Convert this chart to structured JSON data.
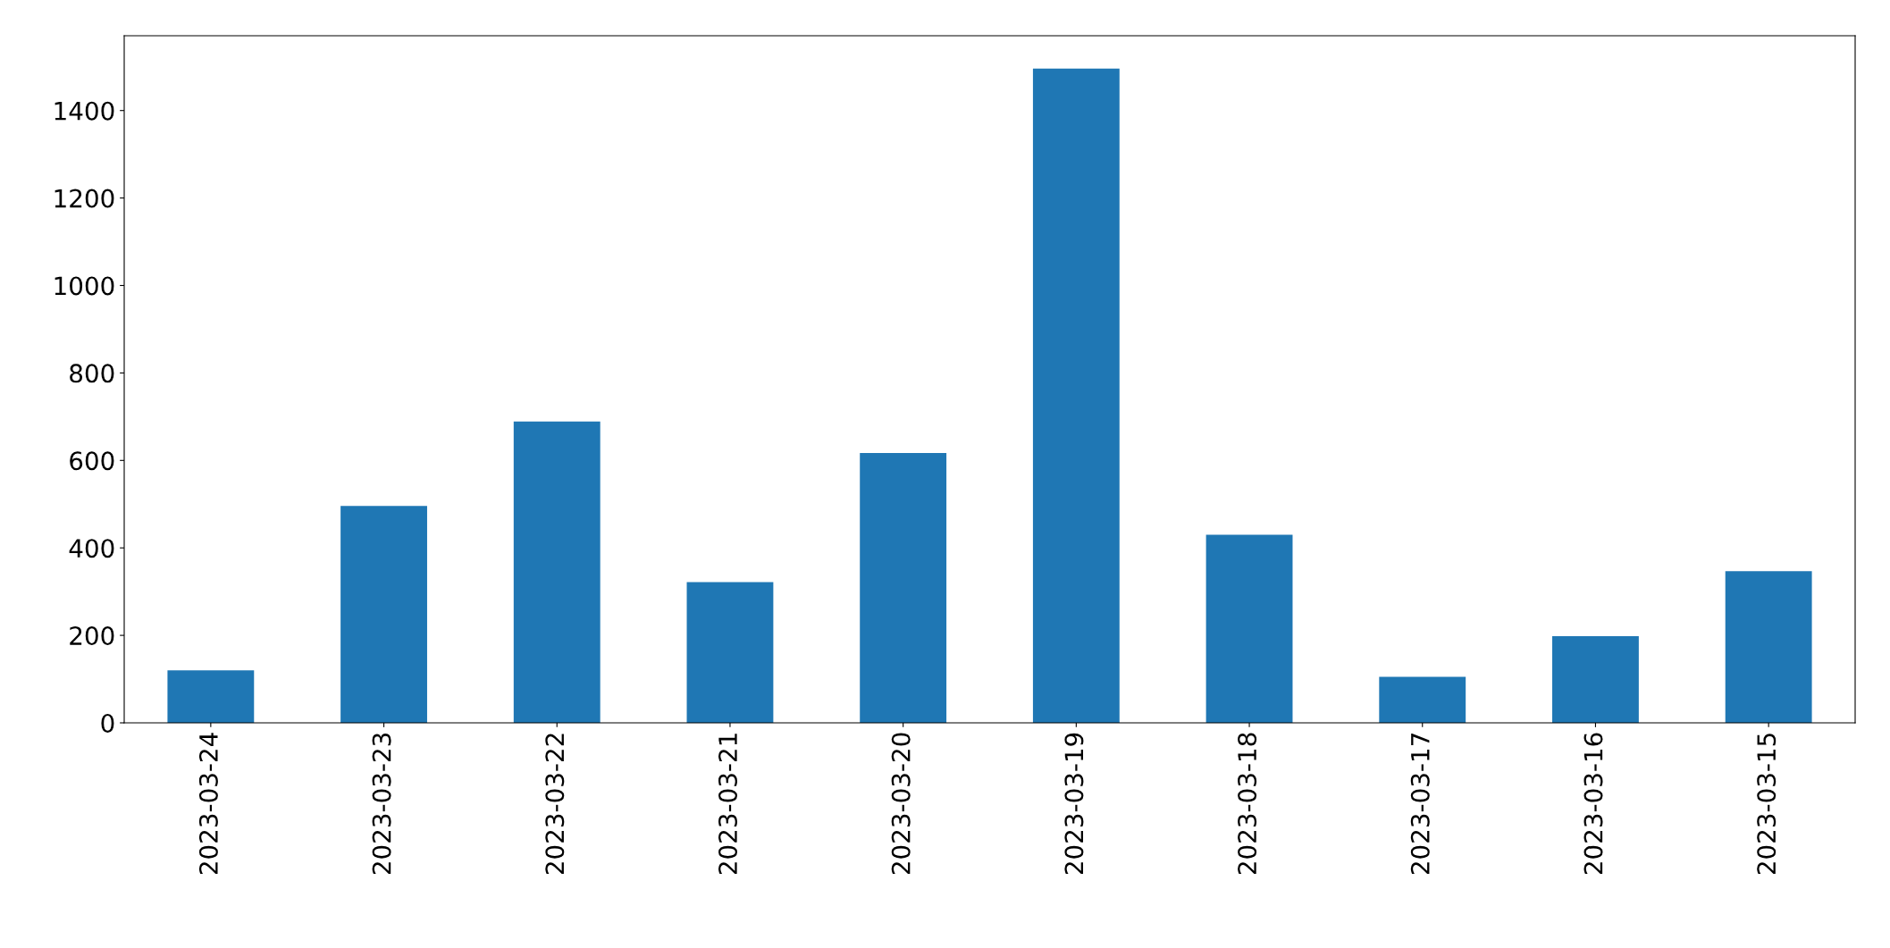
{
  "chart_data": {
    "type": "bar",
    "categories": [
      "2023-03-24",
      "2023-03-23",
      "2023-03-22",
      "2023-03-21",
      "2023-03-20",
      "2023-03-19",
      "2023-03-18",
      "2023-03-17",
      "2023-03-16",
      "2023-03-15"
    ],
    "values": [
      120,
      496,
      689,
      322,
      617,
      1496,
      430,
      105,
      198,
      347
    ],
    "color": "#1f77b4",
    "ylim": [
      0,
      1571
    ],
    "yticks": [
      0,
      200,
      400,
      600,
      800,
      1000,
      1200,
      1400
    ],
    "grid": false,
    "legend": false
  }
}
